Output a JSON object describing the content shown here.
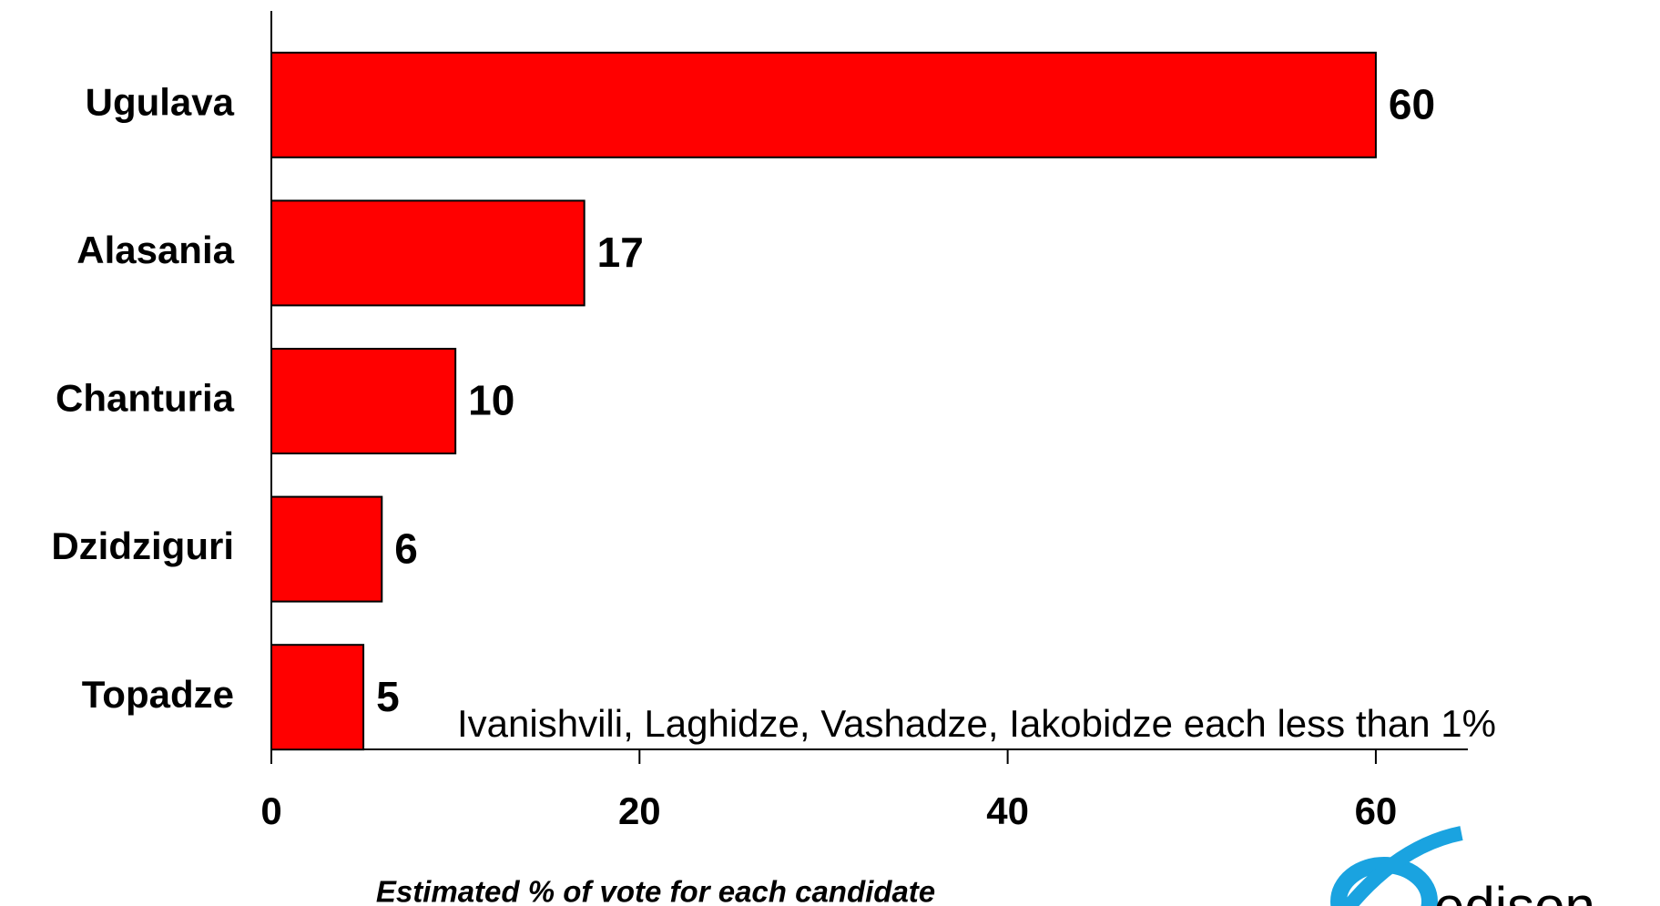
{
  "chart_data": {
    "type": "barh",
    "categories": [
      "Ugulava",
      "Alasania",
      "Chanturia",
      "Dzidziguri",
      "Topadze"
    ],
    "values": [
      60,
      17,
      10,
      6,
      5
    ],
    "color": "#ff0000",
    "xlabel": "Estimated % of vote for each candidate",
    "annotation": "Ivanishvili, Laghidze, Vashadze, Iakobidze each less than 1%",
    "xlim": [
      0,
      65
    ],
    "xticks": [
      0,
      20,
      40,
      60
    ],
    "grid": false,
    "logo": "edison"
  }
}
